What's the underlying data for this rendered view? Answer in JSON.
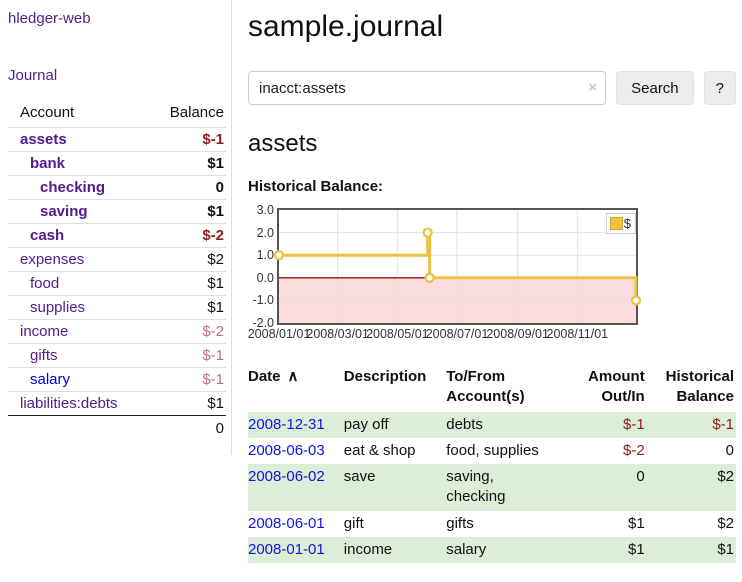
{
  "sidebar": {
    "app_title": "hledger-web",
    "journal_label": "Journal",
    "accounts": {
      "header_account": "Account",
      "header_balance": "Balance",
      "rows": [
        {
          "name": "assets",
          "balance": "$-1",
          "depth": 1,
          "bold": true,
          "negative": "strong"
        },
        {
          "name": "bank",
          "balance": "$1",
          "depth": 2,
          "bold": true,
          "negative": null
        },
        {
          "name": "checking",
          "balance": "0",
          "depth": 3,
          "bold": true,
          "negative": null
        },
        {
          "name": "saving",
          "balance": "$1",
          "depth": 3,
          "bold": true,
          "negative": null
        },
        {
          "name": "cash",
          "balance": "$-2",
          "depth": 2,
          "bold": true,
          "negative": "strong"
        },
        {
          "name": "expenses",
          "balance": "$2",
          "depth": 1,
          "bold": false,
          "negative": null
        },
        {
          "name": "food",
          "balance": "$1",
          "depth": 2,
          "bold": false,
          "negative": null
        },
        {
          "name": "supplies",
          "balance": "$1",
          "depth": 2,
          "bold": false,
          "negative": null
        },
        {
          "name": "income",
          "balance": "$-2",
          "depth": 1,
          "bold": false,
          "negative": "soft"
        },
        {
          "name": "gifts",
          "balance": "$-1",
          "depth": 2,
          "bold": false,
          "negative": "soft"
        },
        {
          "name": "salary",
          "balance": "$-1",
          "depth": 2,
          "bold": false,
          "negative": "soft",
          "unvisited": true
        },
        {
          "name": "liabilities:debts",
          "balance": "$1",
          "depth": 1,
          "bold": false,
          "negative": null
        }
      ],
      "total": "0"
    }
  },
  "main": {
    "title": "sample.journal",
    "search": {
      "value": "inacct:assets",
      "clear_icon": "×",
      "button_label": "Search",
      "help_label": "?"
    },
    "account_heading": "assets",
    "register": {
      "columns": [
        {
          "key": "date",
          "lines": [
            "Date"
          ],
          "align": "left",
          "sortable": true,
          "sort_icon": "∧"
        },
        {
          "key": "description",
          "lines": [
            "Description"
          ],
          "align": "left",
          "sortable": true
        },
        {
          "key": "accounts",
          "lines": [
            "To/From",
            "Account(s)"
          ],
          "align": "left",
          "sortable": false
        },
        {
          "key": "amount",
          "lines": [
            "Amount",
            "Out/In"
          ],
          "align": "right",
          "sortable": true
        },
        {
          "key": "balance",
          "lines": [
            "Historical",
            "Balance"
          ],
          "align": "right",
          "sortable": false
        }
      ],
      "rows": [
        {
          "date": "2008-12-31",
          "description": "pay off",
          "accounts": "debts",
          "amount": "$-1",
          "balance": "$-1",
          "highlight": true
        },
        {
          "date": "2008-06-03",
          "description": "eat & shop",
          "accounts": "food, supplies",
          "amount": "$-2",
          "balance": "0",
          "highlight": false
        },
        {
          "date": "2008-06-02",
          "description": "save",
          "accounts": "saving,\nchecking",
          "amount": "0",
          "balance": "$2",
          "highlight": true
        },
        {
          "date": "2008-06-01",
          "description": "gift",
          "accounts": "gifts",
          "amount": "$1",
          "balance": "$2",
          "highlight": false
        },
        {
          "date": "2008-01-01",
          "description": "income",
          "accounts": "salary",
          "amount": "$1",
          "balance": "$1",
          "highlight": true
        }
      ]
    }
  },
  "chart_data": {
    "type": "line",
    "step": true,
    "title": "Historical Balance:",
    "legend": [
      "$"
    ],
    "legend_position": "top-right",
    "x_dates": [
      "2008-01-01",
      "2008-06-01",
      "2008-06-03",
      "2008-12-31"
    ],
    "x_days": [
      0,
      152,
      154,
      365
    ],
    "values": [
      1,
      2,
      0,
      -1
    ],
    "xlim_days": [
      0,
      365
    ],
    "ylim": [
      -2,
      3
    ],
    "y_ticks": [
      3.0,
      2.0,
      1.0,
      0.0,
      -1.0,
      -2.0
    ],
    "y_tick_labels": [
      "3.0",
      "2.0",
      "1.0",
      "0.0",
      "-1.0",
      "-2.0"
    ],
    "x_tick_labels": [
      "2008/01/01",
      "2008/03/01",
      "2008/05/01",
      "2008/07/01",
      "2008/09/01",
      "2008/11/01"
    ],
    "x_tick_days": [
      0,
      60,
      121,
      182,
      244,
      305
    ],
    "grid": true,
    "series_color": "#EDC240",
    "marker": "open-circle",
    "grid_color": "#e2e2e2",
    "negative_region_color": "#fbdcdc",
    "zero_line_color": "#8b1515"
  }
}
